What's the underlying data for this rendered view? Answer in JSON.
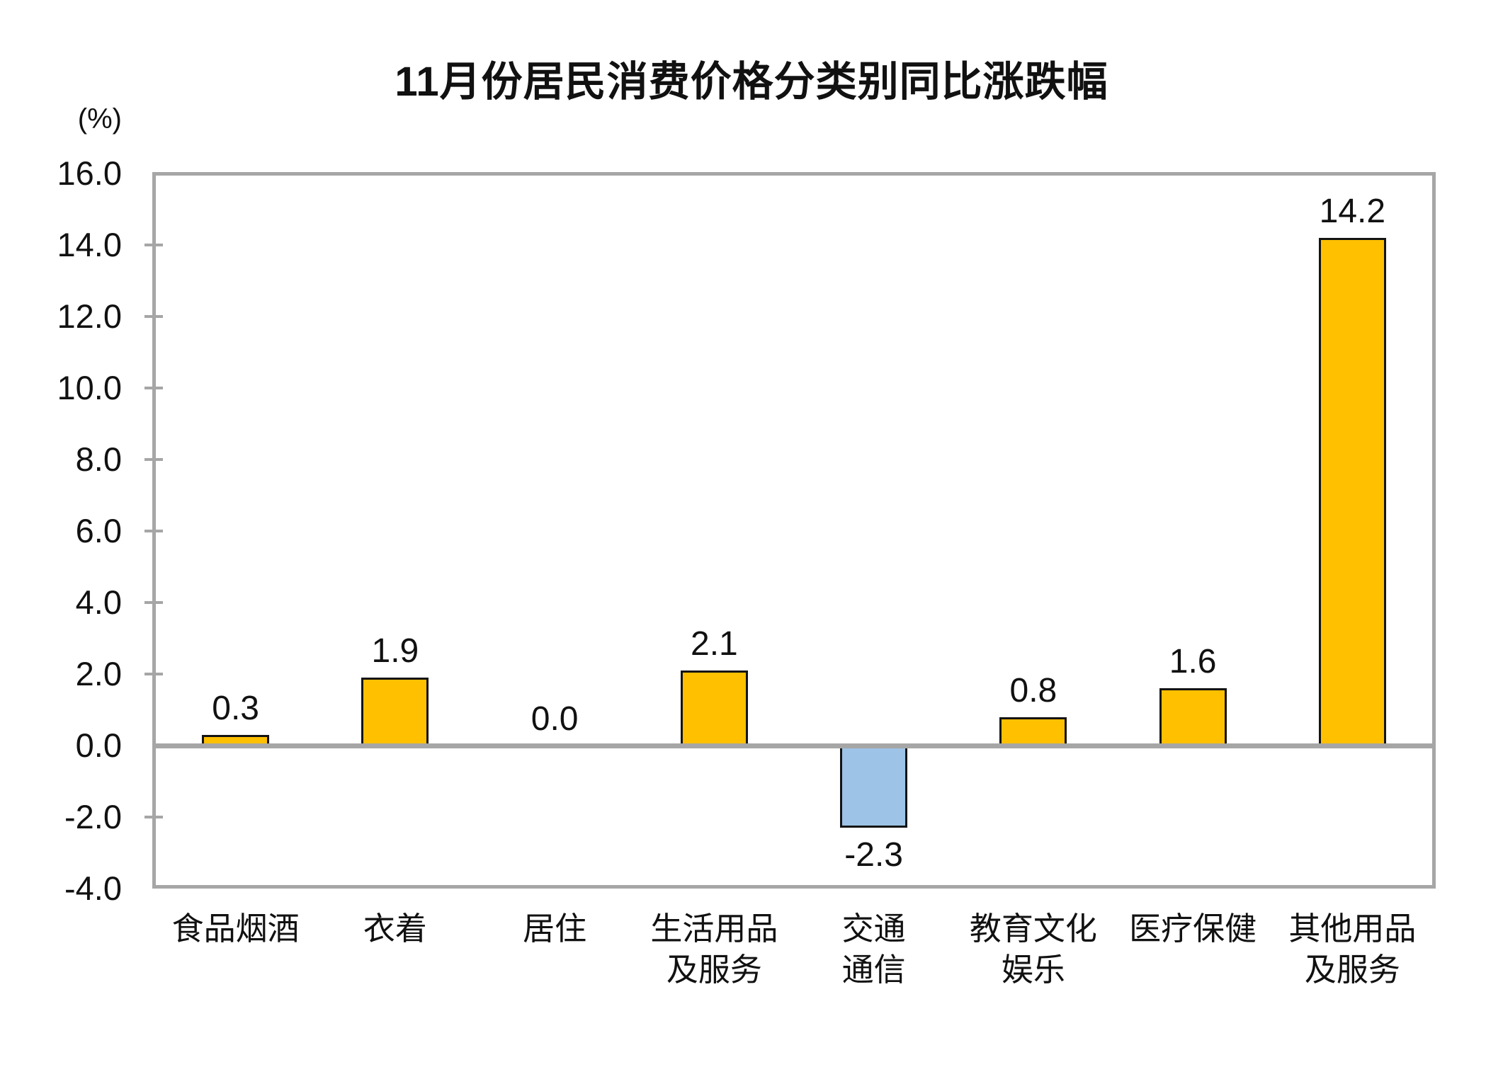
{
  "title": "11月份居民消费价格分类别同比涨跌幅",
  "y_axis": {
    "unit_label": "(%)",
    "tick_labels": [
      "16.0",
      "14.0",
      "12.0",
      "10.0",
      "8.0",
      "6.0",
      "4.0",
      "2.0",
      "0.0",
      "-2.0",
      "-4.0"
    ]
  },
  "chart_data": {
    "type": "bar",
    "title": "11月份居民消费价格分类别同比涨跌幅",
    "xlabel": "",
    "ylabel": "(%)",
    "ylim": [
      -4.0,
      16.0
    ],
    "ytick_step": 2.0,
    "grid": false,
    "legend": "none",
    "categories": [
      "食品烟酒",
      "衣着",
      "居住",
      "生活用品及服务",
      "交通通信",
      "教育文化娱乐",
      "医疗保健",
      "其他用品及服务"
    ],
    "category_label_lines": [
      [
        "食品烟酒"
      ],
      [
        "衣着"
      ],
      [
        "居住"
      ],
      [
        "生活用品",
        "及服务"
      ],
      [
        "交通",
        "通信"
      ],
      [
        "教育文化",
        "娱乐"
      ],
      [
        "医疗保健"
      ],
      [
        "其他用品",
        "及服务"
      ]
    ],
    "values": [
      0.3,
      1.9,
      0.0,
      2.1,
      -2.3,
      0.8,
      1.6,
      14.2
    ],
    "data_labels": [
      "0.3",
      "1.9",
      "0.0",
      "2.1",
      "-2.3",
      "0.8",
      "1.6",
      "14.2"
    ],
    "colors": {
      "positive_bar": "#FFC000",
      "negative_bar": "#9DC3E6",
      "bar_border": "#141414",
      "axis_line": "#A6A6A6",
      "text": "#111111"
    }
  }
}
